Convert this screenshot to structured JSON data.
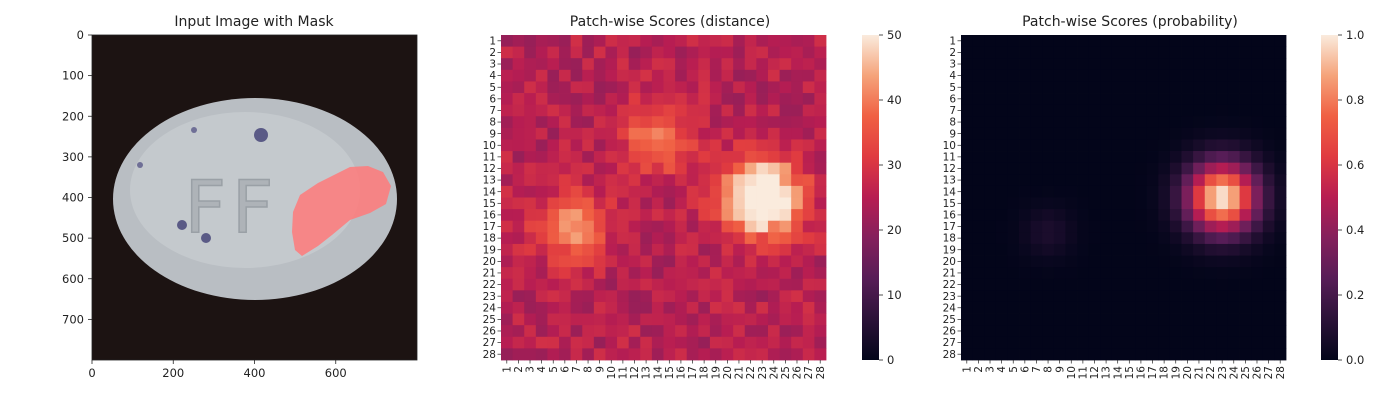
{
  "chart_data": [
    {
      "type": "image",
      "title": "Input Image with Mask",
      "xlim": [
        0,
        800
      ],
      "ylim": [
        800,
        0
      ],
      "xticks": [
        0,
        200,
        400,
        600
      ],
      "yticks": [
        0,
        100,
        200,
        300,
        400,
        500,
        600,
        700
      ],
      "image_text": "FF",
      "mask_label": "defect mask"
    },
    {
      "type": "heatmap",
      "title": "Patch-wise Scores (distance)",
      "rows": 28,
      "cols": 28,
      "row_labels": [
        "1",
        "2",
        "3",
        "4",
        "5",
        "6",
        "7",
        "8",
        "9",
        "10",
        "11",
        "12",
        "13",
        "14",
        "15",
        "16",
        "17",
        "18",
        "19",
        "20",
        "21",
        "22",
        "23",
        "24",
        "25",
        "26",
        "27",
        "28"
      ],
      "col_labels": [
        "1",
        "2",
        "3",
        "4",
        "5",
        "6",
        "7",
        "8",
        "9",
        "10",
        "11",
        "12",
        "13",
        "14",
        "15",
        "16",
        "17",
        "18",
        "19",
        "20",
        "21",
        "22",
        "23",
        "24",
        "25",
        "26",
        "27",
        "28"
      ],
      "colorbar": {
        "min": 0,
        "max": 50,
        "ticks": [
          0,
          10,
          20,
          30,
          40,
          50
        ],
        "colormap": "rocket"
      },
      "hotspots": [
        {
          "row": 14.5,
          "col": 23,
          "peak": 52,
          "sigma": 2.3
        },
        {
          "row": 17,
          "col": 6.5,
          "peak": 33,
          "sigma": 2.0
        },
        {
          "row": 9.5,
          "col": 14,
          "peak": 32,
          "sigma": 2.0
        }
      ],
      "base_value": 25
    },
    {
      "type": "heatmap",
      "title": "Patch-wise Scores (probability)",
      "rows": 28,
      "cols": 28,
      "row_labels": [
        "1",
        "2",
        "3",
        "4",
        "5",
        "6",
        "7",
        "8",
        "9",
        "10",
        "11",
        "12",
        "13",
        "14",
        "15",
        "16",
        "17",
        "18",
        "19",
        "20",
        "21",
        "22",
        "23",
        "24",
        "25",
        "26",
        "27",
        "28"
      ],
      "col_labels": [
        "1",
        "2",
        "3",
        "4",
        "5",
        "6",
        "7",
        "8",
        "9",
        "10",
        "11",
        "12",
        "13",
        "14",
        "15",
        "16",
        "17",
        "18",
        "19",
        "20",
        "21",
        "22",
        "23",
        "24",
        "25",
        "26",
        "27",
        "28"
      ],
      "colorbar": {
        "min": 0,
        "max": 1,
        "ticks": [
          "0.0",
          "0.2",
          "0.4",
          "0.6",
          "0.8",
          "1.0"
        ],
        "colormap": "rocket"
      },
      "hotspots": [
        {
          "row": 14.5,
          "col": 23,
          "peak": 1.0,
          "sigma": 2.1
        },
        {
          "row": 17.5,
          "col": 8,
          "peak": 0.08,
          "sigma": 1.5
        }
      ],
      "base_value": 0.0
    }
  ]
}
